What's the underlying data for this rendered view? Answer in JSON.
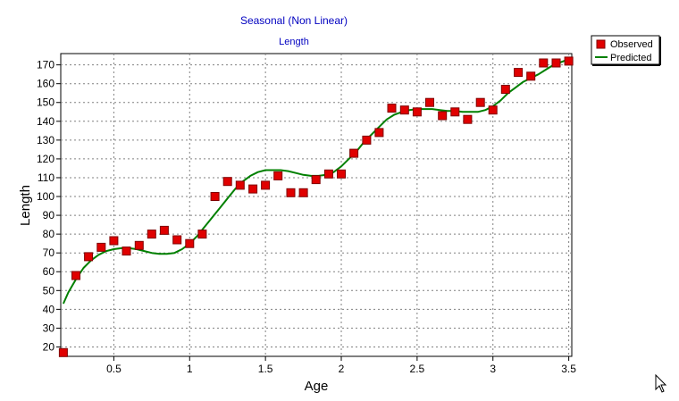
{
  "chart_data": {
    "type": "scatter",
    "title": "Seasonal (Non Linear)",
    "subtitle": "Length",
    "xlabel": "Age",
    "ylabel": "Length",
    "xlim": [
      0.15,
      3.52
    ],
    "ylim": [
      15,
      176
    ],
    "xticks": [
      0.5,
      1,
      1.5,
      2,
      2.5,
      3,
      3.5
    ],
    "xtick_labels": [
      "0.5",
      "1",
      "1.5",
      "2",
      "2.5",
      "3",
      "3.5"
    ],
    "yticks": [
      20,
      30,
      40,
      50,
      60,
      70,
      80,
      90,
      100,
      110,
      120,
      130,
      140,
      150,
      160,
      170
    ],
    "ytick_labels": [
      "20",
      "30",
      "40",
      "50",
      "60",
      "70",
      "80",
      "90",
      "100",
      "110",
      "120",
      "130",
      "140",
      "150",
      "160",
      "170"
    ],
    "grid": true,
    "legend_position": "top-right outside",
    "series": [
      {
        "name": "Observed",
        "kind": "scatter",
        "color": "#e00000",
        "edge_color": "#800000",
        "x": [
          0.167,
          0.25,
          0.333,
          0.417,
          0.5,
          0.583,
          0.667,
          0.75,
          0.833,
          0.917,
          1.0,
          1.083,
          1.167,
          1.25,
          1.333,
          1.417,
          1.5,
          1.583,
          1.667,
          1.75,
          1.833,
          1.917,
          2.0,
          2.083,
          2.167,
          2.25,
          2.333,
          2.417,
          2.5,
          2.583,
          2.667,
          2.75,
          2.833,
          2.917,
          3.0,
          3.083,
          3.167,
          3.25,
          3.333,
          3.417,
          3.5
        ],
        "y": [
          17,
          58,
          68,
          73,
          76.5,
          71,
          74,
          80,
          82,
          77,
          75,
          80,
          100,
          108,
          106,
          104,
          106,
          111,
          102,
          102,
          109,
          112,
          112,
          123,
          130,
          134,
          147,
          146,
          145,
          150,
          143,
          145,
          141,
          150,
          146,
          157,
          166,
          164,
          171,
          171,
          172
        ]
      },
      {
        "name": "Predicted",
        "kind": "line",
        "color": "#008000",
        "x": [
          0.167,
          0.2,
          0.25,
          0.3,
          0.35,
          0.4,
          0.45,
          0.5,
          0.55,
          0.6,
          0.65,
          0.7,
          0.75,
          0.8,
          0.85,
          0.9,
          0.95,
          1.0,
          1.05,
          1.1,
          1.15,
          1.2,
          1.25,
          1.3,
          1.35,
          1.4,
          1.45,
          1.5,
          1.55,
          1.6,
          1.65,
          1.7,
          1.75,
          1.8,
          1.85,
          1.9,
          1.95,
          2.0,
          2.05,
          2.1,
          2.15,
          2.2,
          2.25,
          2.3,
          2.35,
          2.4,
          2.45,
          2.5,
          2.55,
          2.6,
          2.65,
          2.7,
          2.75,
          2.8,
          2.85,
          2.9,
          2.95,
          3.0,
          3.05,
          3.1,
          3.15,
          3.2,
          3.25,
          3.3,
          3.35,
          3.4,
          3.45,
          3.5
        ],
        "y": [
          43,
          49,
          56,
          62,
          66,
          69,
          71,
          72,
          72.5,
          72.5,
          72,
          71,
          70,
          69.5,
          69.5,
          70,
          72,
          75,
          79,
          84,
          89,
          94,
          99,
          104,
          108,
          111,
          113,
          114,
          114,
          114,
          113.5,
          112.5,
          111.5,
          111,
          111,
          111.5,
          113,
          116,
          120,
          124,
          129,
          133,
          137,
          141,
          143.5,
          145,
          146,
          146.5,
          146.5,
          146.5,
          146,
          145.5,
          145.5,
          145,
          145,
          145,
          146,
          148,
          151,
          155,
          158,
          161,
          163,
          165,
          167.5,
          170,
          171.5,
          173
        ]
      }
    ]
  }
}
